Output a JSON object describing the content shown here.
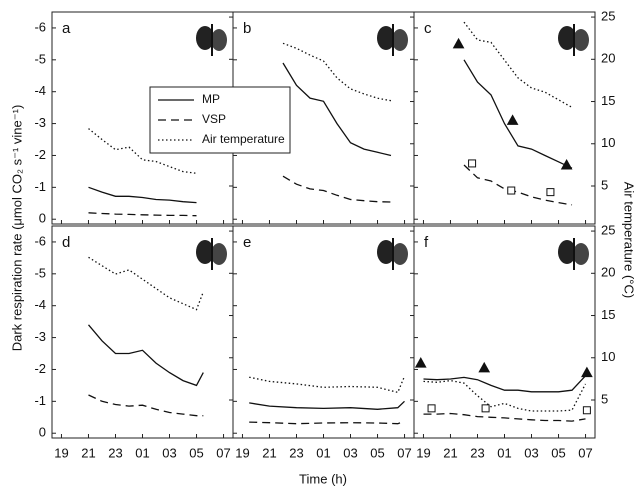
{
  "figure": {
    "ylabel": "Dark respiration rate (μmol CO₂ s⁻¹ vine⁻¹)",
    "y2label": "Air temperature (°C)",
    "xlabel": "Time (h)"
  },
  "legend": [
    {
      "name": "MP",
      "dash": "none"
    },
    {
      "name": "VSP",
      "dash": "8,5"
    },
    {
      "name": "Air temperature",
      "dash": "1.5,2.5"
    }
  ],
  "chart_data": [
    {
      "type": "line",
      "label": "a",
      "xlim": [
        18.3,
        31.7
      ],
      "ylim": [
        0.15,
        -6.5
      ],
      "y2lim": [
        0.5,
        25.6
      ],
      "xticks": [
        19,
        21,
        23,
        {
          "value": 25,
          "label": "01"
        },
        {
          "value": 27,
          "label": "03"
        },
        {
          "value": 29,
          "label": "05"
        },
        {
          "value": 31,
          "label": "07"
        }
      ],
      "yticks": [
        -6,
        -5,
        -4,
        -3,
        -2,
        -1,
        0
      ],
      "y2ticks": [
        5,
        10,
        15,
        20,
        25
      ],
      "x": [
        21,
        22,
        23,
        24,
        25,
        26,
        27,
        28,
        29
      ],
      "series": [
        {
          "values": [
            -1.0,
            -0.85,
            -0.72,
            -0.72,
            -0.68,
            -0.62,
            -0.6,
            -0.55,
            -0.52
          ]
        },
        {
          "values": [
            -0.2,
            -0.18,
            -0.16,
            -0.15,
            -0.14,
            -0.13,
            -0.12,
            -0.12,
            -0.11
          ]
        },
        {
          "values": [
            11.8,
            10.5,
            9.3,
            9.6,
            8.1,
            7.9,
            7.3,
            6.7,
            6.5
          ],
          "axis": "y2"
        }
      ]
    },
    {
      "type": "line",
      "label": "b",
      "xlim": [
        18.3,
        31.7
      ],
      "ylim": [
        0.15,
        -6.5
      ],
      "y2lim": [
        0.5,
        25.6
      ],
      "xticks": [
        19,
        21,
        23,
        {
          "value": 25,
          "label": "01"
        },
        {
          "value": 27,
          "label": "03"
        },
        {
          "value": 29,
          "label": "05"
        },
        {
          "value": 31,
          "label": "07"
        }
      ],
      "yticks": [
        -6,
        -5,
        -4,
        -3,
        -2,
        -1,
        0
      ],
      "y2ticks": [
        5,
        10,
        15,
        20,
        25
      ],
      "x": [
        22,
        23,
        24,
        25,
        26,
        27,
        28,
        29,
        30
      ],
      "series": [
        {
          "values": [
            -4.9,
            -4.2,
            -3.8,
            -3.7,
            -3.0,
            -2.4,
            -2.2,
            -2.1,
            -2.0
          ]
        },
        {
          "values": [
            -1.35,
            -1.1,
            -0.95,
            -0.9,
            -0.75,
            -0.62,
            -0.58,
            -0.55,
            -0.54
          ]
        },
        {
          "values": [
            21.9,
            21.3,
            20.5,
            19.8,
            17.8,
            16.5,
            15.9,
            15.4,
            15.1
          ],
          "axis": "y2"
        }
      ]
    },
    {
      "type": "line",
      "label": "c",
      "xlim": [
        18.3,
        31.7
      ],
      "ylim": [
        0.15,
        -6.5
      ],
      "y2lim": [
        0.5,
        25.6
      ],
      "xticks": [
        19,
        21,
        23,
        {
          "value": 25,
          "label": "01"
        },
        {
          "value": 27,
          "label": "03"
        },
        {
          "value": 29,
          "label": "05"
        },
        {
          "value": 31,
          "label": "07"
        }
      ],
      "yticks": [
        -6,
        -5,
        -4,
        -3,
        -2,
        -1,
        0
      ],
      "y2ticks": [
        5,
        10,
        15,
        20,
        25
      ],
      "x": [
        22,
        23,
        24,
        25,
        26,
        27,
        28,
        29,
        30
      ],
      "series": [
        {
          "values": [
            -5.0,
            -4.3,
            -3.9,
            -3.0,
            -2.3,
            -2.2,
            -2.0,
            -1.8,
            -1.6
          ]
        },
        {
          "values": [
            -1.7,
            -1.3,
            -1.2,
            -0.95,
            -0.85,
            -0.7,
            -0.6,
            -0.52,
            -0.45
          ]
        },
        {
          "values": [
            24.4,
            22.3,
            22.0,
            19.9,
            17.8,
            16.6,
            16.1,
            15.2,
            14.3
          ],
          "axis": "y2"
        }
      ],
      "points": [
        {
          "shape": "triangle",
          "x": [
            21.6,
            25.6,
            29.6
          ],
          "values": [
            -5.5,
            -3.1,
            -1.7
          ]
        },
        {
          "shape": "square",
          "x": [
            22.6,
            25.5,
            28.4
          ],
          "values": [
            -1.75,
            -0.9,
            -0.85
          ]
        }
      ]
    },
    {
      "type": "line",
      "label": "d",
      "xlim": [
        18.3,
        31.7
      ],
      "ylim": [
        0.15,
        -6.5
      ],
      "y2lim": [
        0.5,
        25.6
      ],
      "xticks": [
        19,
        21,
        23,
        {
          "value": 25,
          "label": "01"
        },
        {
          "value": 27,
          "label": "03"
        },
        {
          "value": 29,
          "label": "05"
        },
        {
          "value": 31,
          "label": "07"
        }
      ],
      "yticks": [
        -6,
        -5,
        -4,
        -3,
        -2,
        -1,
        0
      ],
      "y2ticks": [
        5,
        10,
        15,
        20,
        25
      ],
      "x": [
        21,
        22,
        23,
        24,
        25,
        26,
        27,
        28,
        29,
        29.5
      ],
      "series": [
        {
          "values": [
            -3.4,
            -2.9,
            -2.5,
            -2.5,
            -2.6,
            -2.2,
            -1.9,
            -1.65,
            -1.5,
            -1.9
          ]
        },
        {
          "values": [
            -1.2,
            -1.0,
            -0.9,
            -0.85,
            -0.88,
            -0.75,
            -0.65,
            -0.6,
            -0.55,
            -0.55
          ]
        },
        {
          "values": [
            21.9,
            20.9,
            19.9,
            20.4,
            19.3,
            18.2,
            17.1,
            16.4,
            15.7,
            17.8
          ],
          "axis": "y2"
        }
      ]
    },
    {
      "type": "line",
      "label": "e",
      "xlim": [
        18.3,
        31.7
      ],
      "ylim": [
        0.15,
        -6.5
      ],
      "y2lim": [
        0.5,
        25.6
      ],
      "xticks": [
        19,
        21,
        23,
        {
          "value": 25,
          "label": "01"
        },
        {
          "value": 27,
          "label": "03"
        },
        {
          "value": 29,
          "label": "05"
        },
        {
          "value": 31,
          "label": "07"
        }
      ],
      "yticks": [
        -6,
        -5,
        -4,
        -3,
        -2,
        -1,
        0
      ],
      "y2ticks": [
        5,
        10,
        15,
        20,
        25
      ],
      "x": [
        19.5,
        21,
        23,
        25,
        27,
        29,
        30.5,
        31
      ],
      "series": [
        {
          "values": [
            -0.95,
            -0.85,
            -0.8,
            -0.78,
            -0.8,
            -0.75,
            -0.8,
            -1.0
          ]
        },
        {
          "values": [
            -0.35,
            -0.33,
            -0.3,
            -0.32,
            -0.33,
            -0.32,
            -0.3,
            -0.38
          ]
        },
        {
          "values": [
            7.7,
            7.2,
            6.9,
            6.5,
            6.6,
            6.5,
            5.9,
            7.8
          ],
          "axis": "y2"
        }
      ]
    },
    {
      "type": "line",
      "label": "f",
      "xlim": [
        18.3,
        31.7
      ],
      "ylim": [
        0.15,
        -6.5
      ],
      "y2lim": [
        0.5,
        25.6
      ],
      "xticks": [
        19,
        21,
        23,
        {
          "value": 25,
          "label": "01"
        },
        {
          "value": 27,
          "label": "03"
        },
        {
          "value": 29,
          "label": "05"
        },
        {
          "value": 31,
          "label": "07"
        }
      ],
      "yticks": [
        -6,
        -5,
        -4,
        -3,
        -2,
        -1,
        0
      ],
      "y2ticks": [
        5,
        10,
        15,
        20,
        25
      ],
      "x": [
        19,
        20,
        21,
        22,
        23,
        24,
        25,
        26,
        27,
        28,
        29,
        30,
        31
      ],
      "series": [
        {
          "values": [
            -1.7,
            -1.68,
            -1.7,
            -1.75,
            -1.68,
            -1.5,
            -1.35,
            -1.35,
            -1.3,
            -1.3,
            -1.3,
            -1.35,
            -1.8
          ]
        },
        {
          "values": [
            -0.6,
            -0.6,
            -0.62,
            -0.58,
            -0.52,
            -0.5,
            -0.48,
            -0.45,
            -0.42,
            -0.4,
            -0.4,
            -0.38,
            -0.45
          ]
        },
        {
          "values": [
            7.2,
            7.1,
            7.3,
            7.0,
            5.5,
            4.2,
            4.6,
            4.0,
            3.7,
            3.7,
            3.7,
            3.8,
            6.9
          ],
          "axis": "y2"
        }
      ],
      "points": [
        {
          "shape": "triangle",
          "x": [
            18.8,
            23.5,
            31.1
          ],
          "values": [
            -2.2,
            -2.05,
            -1.9
          ]
        },
        {
          "shape": "square",
          "x": [
            19.6,
            23.6,
            31.1
          ],
          "values": [
            -0.78,
            -0.78,
            -0.72
          ]
        }
      ]
    }
  ]
}
